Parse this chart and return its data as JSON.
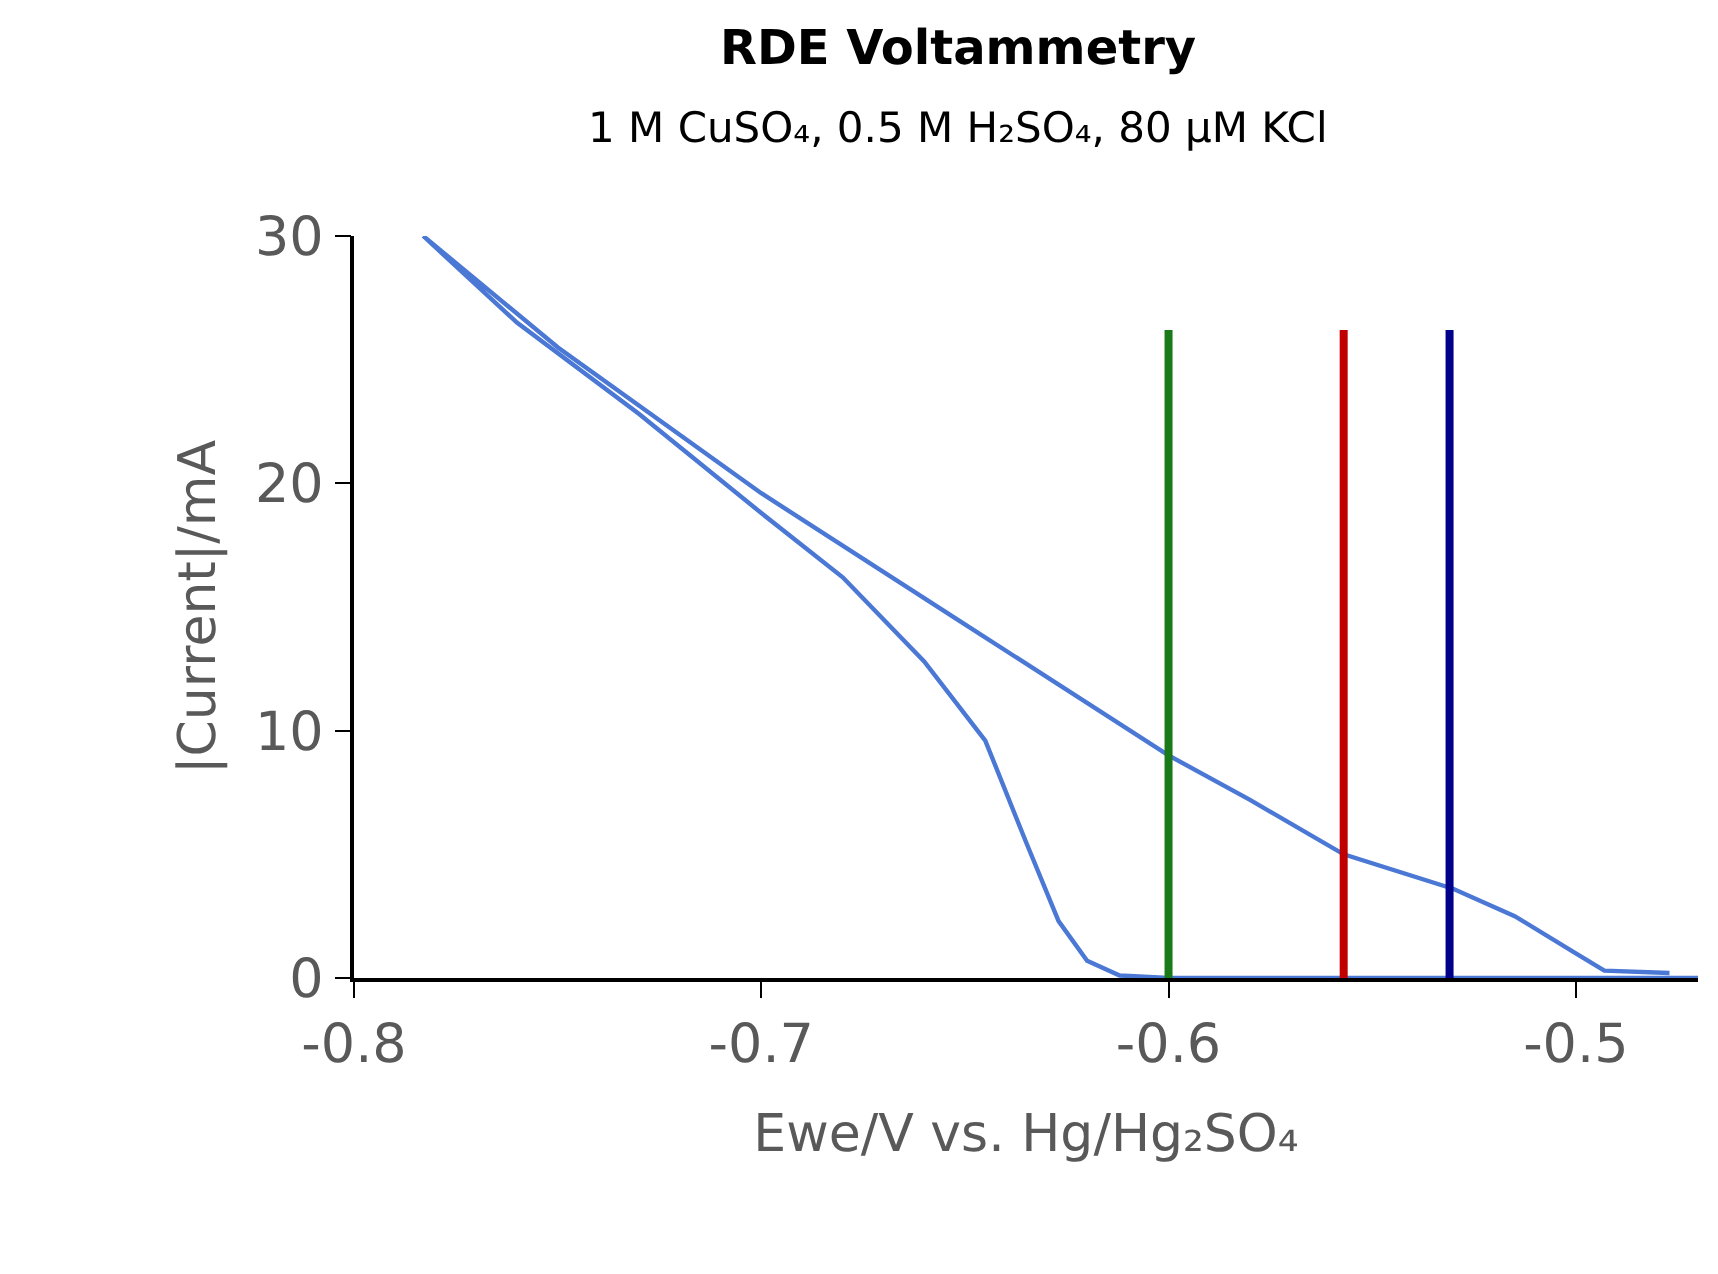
{
  "chart_data": {
    "type": "line",
    "title": "RDE Voltammetry",
    "subtitle": "1 M CuSO₄, 0.5 M H₂SO₄, 80 µM KCl",
    "xlabel": "Ewe/V vs. Hg/Hg₂SO₄",
    "ylabel": "|Current|/mA",
    "xlim": [
      -0.8,
      -0.47
    ],
    "xticks": [
      -0.8,
      -0.7,
      -0.6,
      -0.5
    ],
    "ylim": [
      0,
      30
    ],
    "yticks": [
      0,
      10,
      20,
      30
    ],
    "marker": "none",
    "line_style": "solid",
    "series": [
      {
        "color": "#4a78d4",
        "x": [
          -0.477,
          -0.493,
          -0.5,
          -0.515,
          -0.53,
          -0.557,
          -0.58,
          -0.6,
          -0.65,
          -0.7,
          -0.75,
          -0.783,
          -0.76,
          -0.73,
          -0.7,
          -0.68,
          -0.66,
          -0.645,
          -0.635,
          -0.627,
          -0.62,
          -0.612,
          -0.6,
          -0.47
        ],
        "values": [
          0.2,
          0.3,
          1.0,
          2.5,
          3.6,
          5.0,
          7.2,
          9.0,
          14.3,
          19.6,
          25.5,
          30,
          26.5,
          22.8,
          18.8,
          16.2,
          12.8,
          9.6,
          5.5,
          2.3,
          0.7,
          0.1,
          0,
          0
        ]
      },
      {
        "color": "#1a7a1a",
        "x": [
          -0.6,
          -0.6
        ],
        "values": [
          0,
          26.2
        ]
      },
      {
        "color": "#c00000",
        "x": [
          -0.557,
          -0.557
        ],
        "values": [
          0,
          26.2
        ]
      },
      {
        "color": "#00008b",
        "x": [
          -0.531,
          -0.531
        ],
        "values": [
          0,
          26.2
        ]
      }
    ]
  }
}
